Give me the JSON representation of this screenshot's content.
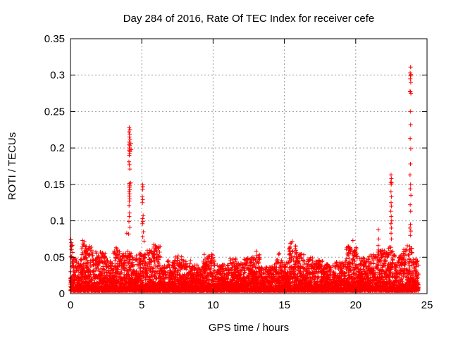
{
  "window": {
    "background": "#ffffff"
  },
  "chart_data": {
    "type": "scatter",
    "title": "Day 284 of 2016, Rate Of TEC Index for receiver cefe",
    "xlabel": "GPS time / hours",
    "ylabel": "ROTI / TECUs",
    "xlim": [
      0,
      25
    ],
    "ylim": [
      0,
      0.35
    ],
    "xticks": {
      "values": [
        0,
        5,
        10,
        15,
        20,
        25
      ],
      "labels": [
        "0",
        "5",
        "10",
        "15",
        "20",
        "25"
      ]
    },
    "yticks": {
      "values": [
        0,
        0.05,
        0.1,
        0.15,
        0.2,
        0.25,
        0.3,
        0.35
      ],
      "labels": [
        "0",
        "0.05",
        "0.1",
        "0.15",
        "0.2",
        "0.25",
        "0.3",
        "0.35"
      ]
    },
    "grid": true,
    "grid_color": "#9b9b9b",
    "axis_color": "#000000",
    "legend": "none",
    "series_name": "ROTI",
    "marker": {
      "glyph": "plus",
      "color": "#ff0000",
      "size": 7,
      "stroke_width": 1
    },
    "baseline_envelope": {
      "description": "Dense noise band of ROTI values; each bin is [start_hour, end_hour, max_value], lower bound y_min, density biased toward low values",
      "points_per_hour": 300,
      "y_min": 0.004,
      "bins": [
        [
          0.0,
          0.2,
          0.075
        ],
        [
          0.2,
          0.5,
          0.048
        ],
        [
          0.5,
          0.78,
          0.05
        ],
        [
          0.78,
          1.0,
          0.072
        ],
        [
          1.0,
          1.5,
          0.065
        ],
        [
          1.5,
          2.0,
          0.058
        ],
        [
          2.0,
          2.5,
          0.056
        ],
        [
          2.5,
          3.0,
          0.046
        ],
        [
          3.0,
          3.5,
          0.062
        ],
        [
          3.5,
          4.0,
          0.057
        ],
        [
          4.0,
          4.35,
          0.06
        ],
        [
          4.35,
          4.78,
          0.052
        ],
        [
          4.78,
          5.3,
          0.056
        ],
        [
          5.3,
          5.8,
          0.06
        ],
        [
          5.8,
          6.3,
          0.068
        ],
        [
          6.3,
          6.8,
          0.042
        ],
        [
          6.8,
          7.3,
          0.046
        ],
        [
          7.3,
          7.8,
          0.053
        ],
        [
          7.8,
          8.5,
          0.046
        ],
        [
          8.5,
          9.3,
          0.04
        ],
        [
          9.3,
          10.1,
          0.054
        ],
        [
          10.1,
          11.0,
          0.04
        ],
        [
          11.0,
          11.6,
          0.048
        ],
        [
          11.6,
          12.1,
          0.042
        ],
        [
          12.1,
          12.7,
          0.05
        ],
        [
          12.7,
          13.3,
          0.056
        ],
        [
          13.3,
          14.3,
          0.037
        ],
        [
          14.3,
          14.9,
          0.047
        ],
        [
          14.9,
          15.3,
          0.044
        ],
        [
          15.3,
          15.9,
          0.07
        ],
        [
          15.9,
          16.5,
          0.055
        ],
        [
          16.5,
          17.1,
          0.05
        ],
        [
          17.1,
          17.7,
          0.047
        ],
        [
          17.7,
          18.5,
          0.041
        ],
        [
          18.5,
          19.2,
          0.044
        ],
        [
          19.2,
          20.1,
          0.065
        ],
        [
          20.1,
          20.9,
          0.05
        ],
        [
          20.9,
          21.5,
          0.054
        ],
        [
          21.5,
          22.1,
          0.06
        ],
        [
          22.1,
          22.75,
          0.064
        ],
        [
          22.75,
          23.35,
          0.054
        ],
        [
          23.35,
          23.95,
          0.068
        ],
        [
          23.95,
          24.4,
          0.048
        ]
      ]
    },
    "outlier_points": [
      [
        4.12,
        0.228
      ],
      [
        4.17,
        0.225
      ],
      [
        4.1,
        0.222
      ],
      [
        4.15,
        0.219
      ],
      [
        4.13,
        0.215
      ],
      [
        4.18,
        0.212
      ],
      [
        4.12,
        0.208
      ],
      [
        4.1,
        0.205
      ],
      [
        4.16,
        0.203
      ],
      [
        4.13,
        0.2
      ],
      [
        4.11,
        0.197
      ],
      [
        4.17,
        0.195
      ],
      [
        4.14,
        0.192
      ],
      [
        4.12,
        0.19
      ],
      [
        4.24,
        0.206
      ],
      [
        4.26,
        0.198
      ],
      [
        4.1,
        0.181
      ],
      [
        4.13,
        0.177
      ],
      [
        4.16,
        0.171
      ],
      [
        4.22,
        0.152
      ],
      [
        4.12,
        0.151
      ],
      [
        4.15,
        0.148
      ],
      [
        4.13,
        0.146
      ],
      [
        4.16,
        0.143
      ],
      [
        4.11,
        0.14
      ],
      [
        4.14,
        0.137
      ],
      [
        4.12,
        0.134
      ],
      [
        4.15,
        0.13
      ],
      [
        4.13,
        0.127
      ],
      [
        4.11,
        0.121
      ],
      [
        4.14,
        0.111
      ],
      [
        4.12,
        0.106
      ],
      [
        4.1,
        0.099
      ],
      [
        4.16,
        0.091
      ],
      [
        4.08,
        0.082
      ],
      [
        3.95,
        0.083
      ],
      [
        5.05,
        0.15
      ],
      [
        5.08,
        0.147
      ],
      [
        5.06,
        0.143
      ],
      [
        5.04,
        0.133
      ],
      [
        5.07,
        0.129
      ],
      [
        5.05,
        0.125
      ],
      [
        5.1,
        0.107
      ],
      [
        5.06,
        0.103
      ],
      [
        5.08,
        0.099
      ],
      [
        5.05,
        0.096
      ],
      [
        5.12,
        0.085
      ],
      [
        5.07,
        0.078
      ],
      [
        5.16,
        0.072
      ],
      [
        21.58,
        0.088
      ],
      [
        21.61,
        0.075
      ],
      [
        21.57,
        0.066
      ],
      [
        21.6,
        0.06
      ],
      [
        22.48,
        0.163
      ],
      [
        22.5,
        0.158
      ],
      [
        22.46,
        0.153
      ],
      [
        22.52,
        0.152
      ],
      [
        22.49,
        0.15
      ],
      [
        22.47,
        0.14
      ],
      [
        22.51,
        0.133
      ],
      [
        22.48,
        0.125
      ],
      [
        22.5,
        0.12
      ],
      [
        22.46,
        0.113
      ],
      [
        22.49,
        0.106
      ],
      [
        22.52,
        0.1
      ],
      [
        22.47,
        0.096
      ],
      [
        22.5,
        0.09
      ],
      [
        22.48,
        0.083
      ],
      [
        22.51,
        0.075
      ],
      [
        23.85,
        0.311
      ],
      [
        23.82,
        0.303
      ],
      [
        23.87,
        0.301
      ],
      [
        23.84,
        0.299
      ],
      [
        23.83,
        0.295
      ],
      [
        23.86,
        0.29
      ],
      [
        23.81,
        0.278
      ],
      [
        23.84,
        0.277
      ],
      [
        23.87,
        0.275
      ],
      [
        23.83,
        0.25
      ],
      [
        23.85,
        0.232
      ],
      [
        23.82,
        0.213
      ],
      [
        23.86,
        0.199
      ],
      [
        23.84,
        0.178
      ],
      [
        23.81,
        0.163
      ],
      [
        23.85,
        0.15
      ],
      [
        23.83,
        0.144
      ],
      [
        23.87,
        0.135
      ],
      [
        23.82,
        0.122
      ],
      [
        23.85,
        0.113
      ],
      [
        23.84,
        0.095
      ],
      [
        23.81,
        0.09
      ],
      [
        23.86,
        0.086
      ],
      [
        23.83,
        0.08
      ],
      [
        23.79,
        0.065
      ],
      [
        23.87,
        0.062
      ],
      [
        0.03,
        0.074
      ],
      [
        0.06,
        0.07
      ],
      [
        0.09,
        0.066
      ],
      [
        0.85,
        0.073
      ],
      [
        0.9,
        0.068
      ],
      [
        1.1,
        0.065
      ],
      [
        2.1,
        0.057
      ],
      [
        3.2,
        0.063
      ],
      [
        7.55,
        0.052
      ],
      [
        9.98,
        0.053
      ],
      [
        13.02,
        0.058
      ],
      [
        14.6,
        0.054
      ],
      [
        14.64,
        0.055
      ],
      [
        15.55,
        0.072
      ],
      [
        19.8,
        0.073
      ]
    ]
  }
}
